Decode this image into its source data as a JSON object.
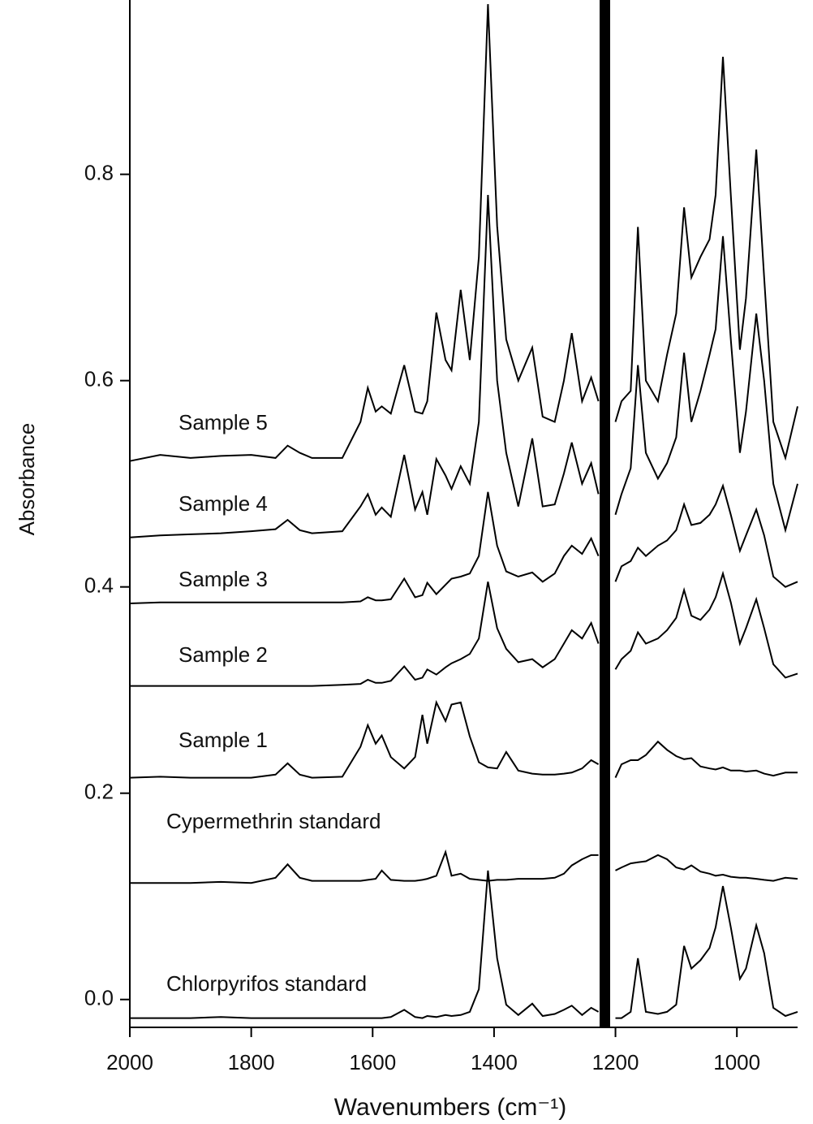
{
  "chart_data": {
    "type": "line",
    "xlabel": "Wavenumbers (cm⁻¹)",
    "ylabel": "Absorbance",
    "xlim": [
      2000,
      900
    ],
    "ylim": [
      -0.027,
      0.969
    ],
    "xticks": [
      2000,
      1800,
      1600,
      1400,
      1200,
      1000
    ],
    "yticks": [
      {
        "value": 0,
        "label": "0.0"
      },
      {
        "value": 0.2,
        "label": "0.2"
      },
      {
        "value": 0.4,
        "label": "0.4"
      },
      {
        "value": 0.6,
        "label": "0.6"
      },
      {
        "value": 0.8,
        "label": "0.8"
      }
    ],
    "x": [
      2000,
      1950,
      1900,
      1850,
      1800,
      1760,
      1740,
      1720,
      1700,
      1650,
      1620,
      1608,
      1595,
      1585,
      1570,
      1548,
      1530,
      1518,
      1510,
      1495,
      1480,
      1470,
      1455,
      1440,
      1425,
      1410,
      1395,
      1380,
      1360,
      1337,
      1320,
      1300,
      1285,
      1272,
      1255,
      1240,
      1228,
      1220,
      1200,
      1190,
      1175,
      1163,
      1150,
      1130,
      1115,
      1100,
      1087,
      1075,
      1060,
      1045,
      1035,
      1023,
      1010,
      995,
      985,
      968,
      955,
      940,
      920,
      900
    ],
    "series": [
      {
        "name": "Chlorpyrifos standard",
        "color": "#000000",
        "values": [
          -0.018,
          -0.018,
          -0.018,
          -0.017,
          -0.018,
          -0.018,
          -0.018,
          -0.018,
          -0.018,
          -0.018,
          -0.018,
          -0.018,
          -0.018,
          -0.018,
          -0.017,
          -0.01,
          -0.017,
          -0.018,
          -0.016,
          -0.017,
          -0.015,
          -0.016,
          -0.015,
          -0.012,
          0.01,
          0.125,
          0.04,
          -0.005,
          -0.015,
          -0.004,
          -0.016,
          -0.014,
          -0.01,
          -0.006,
          -0.015,
          -0.008,
          -0.012,
          null,
          -0.018,
          -0.018,
          -0.012,
          0.04,
          -0.012,
          -0.014,
          -0.012,
          -0.005,
          0.052,
          0.03,
          0.038,
          0.05,
          0.07,
          0.11,
          0.07,
          0.02,
          0.03,
          0.072,
          0.045,
          -0.008,
          -0.016,
          -0.012
        ]
      },
      {
        "name": "Cypermethrin standard",
        "color": "#000000",
        "values": [
          0.113,
          0.113,
          0.113,
          0.114,
          0.113,
          0.118,
          0.131,
          0.118,
          0.115,
          0.115,
          0.115,
          0.116,
          0.117,
          0.125,
          0.116,
          0.115,
          0.115,
          0.116,
          0.117,
          0.12,
          0.143,
          0.12,
          0.122,
          0.117,
          0.116,
          0.115,
          0.116,
          0.116,
          0.117,
          0.117,
          0.117,
          0.118,
          0.122,
          0.13,
          0.136,
          0.14,
          0.14,
          null,
          0.125,
          0.128,
          0.132,
          0.133,
          0.134,
          0.14,
          0.136,
          0.128,
          0.126,
          0.13,
          0.124,
          0.122,
          0.12,
          0.121,
          0.119,
          0.118,
          0.118,
          0.117,
          0.116,
          0.115,
          0.118,
          0.117
        ]
      },
      {
        "name": "Sample 1",
        "color": "#000000",
        "values": [
          0.215,
          0.216,
          0.215,
          0.215,
          0.215,
          0.218,
          0.229,
          0.218,
          0.215,
          0.216,
          0.245,
          0.266,
          0.248,
          0.256,
          0.235,
          0.224,
          0.235,
          0.276,
          0.248,
          0.288,
          0.27,
          0.286,
          0.288,
          0.255,
          0.23,
          0.225,
          0.224,
          0.24,
          0.222,
          0.219,
          0.218,
          0.218,
          0.219,
          0.22,
          0.224,
          0.232,
          0.228,
          null,
          0.215,
          0.228,
          0.232,
          0.232,
          0.237,
          0.25,
          0.242,
          0.236,
          0.233,
          0.234,
          0.226,
          0.224,
          0.223,
          0.225,
          0.222,
          0.222,
          0.221,
          0.222,
          0.219,
          0.217,
          0.22,
          0.22
        ]
      },
      {
        "name": "Sample 2",
        "color": "#000000",
        "values": [
          0.304,
          0.304,
          0.304,
          0.304,
          0.304,
          0.304,
          0.304,
          0.304,
          0.304,
          0.305,
          0.306,
          0.31,
          0.307,
          0.307,
          0.309,
          0.323,
          0.31,
          0.312,
          0.32,
          0.315,
          0.322,
          0.326,
          0.33,
          0.335,
          0.35,
          0.405,
          0.36,
          0.34,
          0.327,
          0.33,
          0.322,
          0.33,
          0.345,
          0.358,
          0.35,
          0.365,
          0.345,
          null,
          0.32,
          0.33,
          0.338,
          0.356,
          0.345,
          0.35,
          0.358,
          0.37,
          0.397,
          0.372,
          0.368,
          0.378,
          0.39,
          0.413,
          0.385,
          0.345,
          0.36,
          0.388,
          0.36,
          0.325,
          0.312,
          0.316
        ]
      },
      {
        "name": "Sample 3",
        "color": "#000000",
        "values": [
          0.384,
          0.385,
          0.385,
          0.385,
          0.385,
          0.385,
          0.385,
          0.385,
          0.385,
          0.385,
          0.386,
          0.39,
          0.387,
          0.387,
          0.388,
          0.408,
          0.39,
          0.392,
          0.404,
          0.393,
          0.402,
          0.408,
          0.41,
          0.413,
          0.43,
          0.492,
          0.44,
          0.415,
          0.41,
          0.414,
          0.405,
          0.413,
          0.43,
          0.44,
          0.432,
          0.447,
          0.43,
          null,
          0.405,
          0.42,
          0.425,
          0.438,
          0.43,
          0.44,
          0.445,
          0.455,
          0.48,
          0.46,
          0.462,
          0.47,
          0.48,
          0.498,
          0.47,
          0.435,
          0.45,
          0.475,
          0.45,
          0.41,
          0.4,
          0.405
        ]
      },
      {
        "name": "Sample 4",
        "color": "#000000",
        "values": [
          0.448,
          0.45,
          0.451,
          0.452,
          0.454,
          0.456,
          0.465,
          0.455,
          0.452,
          0.454,
          0.478,
          0.49,
          0.47,
          0.477,
          0.468,
          0.528,
          0.475,
          0.492,
          0.47,
          0.524,
          0.508,
          0.495,
          0.517,
          0.5,
          0.56,
          0.78,
          0.6,
          0.53,
          0.478,
          0.544,
          0.478,
          0.48,
          0.51,
          0.54,
          0.5,
          0.52,
          0.49,
          null,
          0.47,
          0.49,
          0.515,
          0.615,
          0.53,
          0.505,
          0.52,
          0.545,
          0.627,
          0.56,
          0.59,
          0.625,
          0.65,
          0.74,
          0.64,
          0.53,
          0.57,
          0.665,
          0.6,
          0.5,
          0.455,
          0.5
        ]
      },
      {
        "name": "Sample 5",
        "color": "#000000",
        "values": [
          0.522,
          0.528,
          0.525,
          0.527,
          0.528,
          0.525,
          0.537,
          0.53,
          0.525,
          0.525,
          0.56,
          0.593,
          0.57,
          0.575,
          0.568,
          0.615,
          0.57,
          0.568,
          0.58,
          0.666,
          0.62,
          0.61,
          0.688,
          0.62,
          0.72,
          0.965,
          0.75,
          0.64,
          0.6,
          0.632,
          0.565,
          0.56,
          0.6,
          0.646,
          0.58,
          0.603,
          0.58,
          null,
          0.56,
          0.58,
          0.59,
          0.749,
          0.6,
          0.58,
          0.625,
          0.665,
          0.768,
          0.7,
          0.72,
          0.737,
          0.78,
          0.914,
          0.78,
          0.63,
          0.68,
          0.824,
          0.7,
          0.56,
          0.525,
          0.575
        ]
      }
    ]
  }
}
